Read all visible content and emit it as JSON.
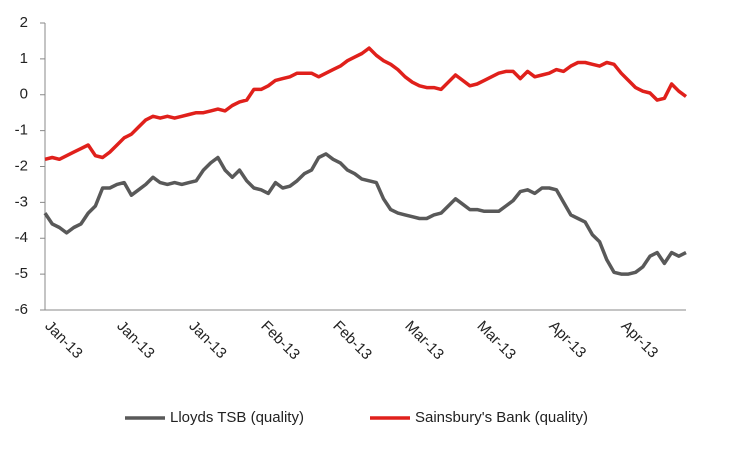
{
  "chart_data": {
    "type": "line",
    "categories": [
      "Jan-13",
      null,
      null,
      null,
      null,
      null,
      null,
      null,
      null,
      null,
      "Jan-13",
      null,
      null,
      null,
      null,
      null,
      null,
      null,
      null,
      null,
      "Jan-13",
      null,
      null,
      null,
      null,
      null,
      null,
      null,
      null,
      null,
      "Feb-13",
      null,
      null,
      null,
      null,
      null,
      null,
      null,
      null,
      null,
      "Feb-13",
      null,
      null,
      null,
      null,
      null,
      null,
      null,
      null,
      null,
      "Mar-13",
      null,
      null,
      null,
      null,
      null,
      null,
      null,
      null,
      null,
      "Mar-13",
      null,
      null,
      null,
      null,
      null,
      null,
      null,
      null,
      null,
      "Apr-13",
      null,
      null,
      null,
      null,
      null,
      null,
      null,
      null,
      null,
      "Apr-13",
      null,
      null,
      null,
      null,
      null,
      null,
      null,
      null,
      null
    ],
    "series": [
      {
        "name": "Lloyds TSB (quality)",
        "color": "#595959",
        "values": [
          -3.3,
          -3.6,
          -3.7,
          -3.85,
          -3.7,
          -3.6,
          -3.3,
          -3.1,
          -2.6,
          -2.6,
          -2.5,
          -2.45,
          -2.8,
          -2.65,
          -2.5,
          -2.3,
          -2.45,
          -2.5,
          -2.45,
          -2.5,
          -2.45,
          -2.4,
          -2.1,
          -1.9,
          -1.75,
          -2.1,
          -2.3,
          -2.1,
          -2.4,
          -2.6,
          -2.65,
          -2.75,
          -2.45,
          -2.6,
          -2.55,
          -2.4,
          -2.2,
          -2.1,
          -1.75,
          -1.65,
          -1.8,
          -1.9,
          -2.1,
          -2.2,
          -2.35,
          -2.4,
          -2.45,
          -2.9,
          -3.2,
          -3.3,
          -3.35,
          -3.4,
          -3.45,
          -3.45,
          -3.35,
          -3.3,
          -3.1,
          -2.9,
          -3.05,
          -3.2,
          -3.2,
          -3.25,
          -3.25,
          -3.25,
          -3.1,
          -2.95,
          -2.7,
          -2.65,
          -2.75,
          -2.6,
          -2.6,
          -2.65,
          -3.0,
          -3.35,
          -3.45,
          -3.55,
          -3.9,
          -4.1,
          -4.6,
          -4.95,
          -5.0,
          -5.0,
          -4.95,
          -4.8,
          -4.5,
          -4.4,
          -4.7,
          -4.4,
          -4.5,
          -4.4
        ]
      },
      {
        "name": "Sainsbury's Bank (quality)",
        "color": "#e0201b",
        "values": [
          -1.8,
          -1.75,
          -1.8,
          -1.7,
          -1.6,
          -1.5,
          -1.4,
          -1.7,
          -1.75,
          -1.6,
          -1.4,
          -1.2,
          -1.1,
          -0.9,
          -0.7,
          -0.6,
          -0.65,
          -0.6,
          -0.65,
          -0.6,
          -0.55,
          -0.5,
          -0.5,
          -0.45,
          -0.4,
          -0.45,
          -0.3,
          -0.2,
          -0.15,
          0.15,
          0.15,
          0.25,
          0.4,
          0.45,
          0.5,
          0.6,
          0.6,
          0.6,
          0.5,
          0.6,
          0.7,
          0.8,
          0.95,
          1.05,
          1.15,
          1.3,
          1.1,
          0.95,
          0.85,
          0.7,
          0.5,
          0.35,
          0.25,
          0.2,
          0.2,
          0.15,
          0.35,
          0.55,
          0.4,
          0.25,
          0.3,
          0.4,
          0.5,
          0.6,
          0.65,
          0.65,
          0.45,
          0.65,
          0.5,
          0.55,
          0.6,
          0.7,
          0.65,
          0.8,
          0.9,
          0.9,
          0.85,
          0.8,
          0.9,
          0.85,
          0.6,
          0.4,
          0.2,
          0.1,
          0.05,
          -0.15,
          -0.1,
          0.3,
          0.1,
          -0.05
        ]
      }
    ],
    "ylim": [
      -6,
      2
    ],
    "yticks": [
      -6,
      -5,
      -4,
      -3,
      -2,
      -1,
      0,
      1,
      2
    ],
    "grid": false,
    "legend": "bottom"
  }
}
